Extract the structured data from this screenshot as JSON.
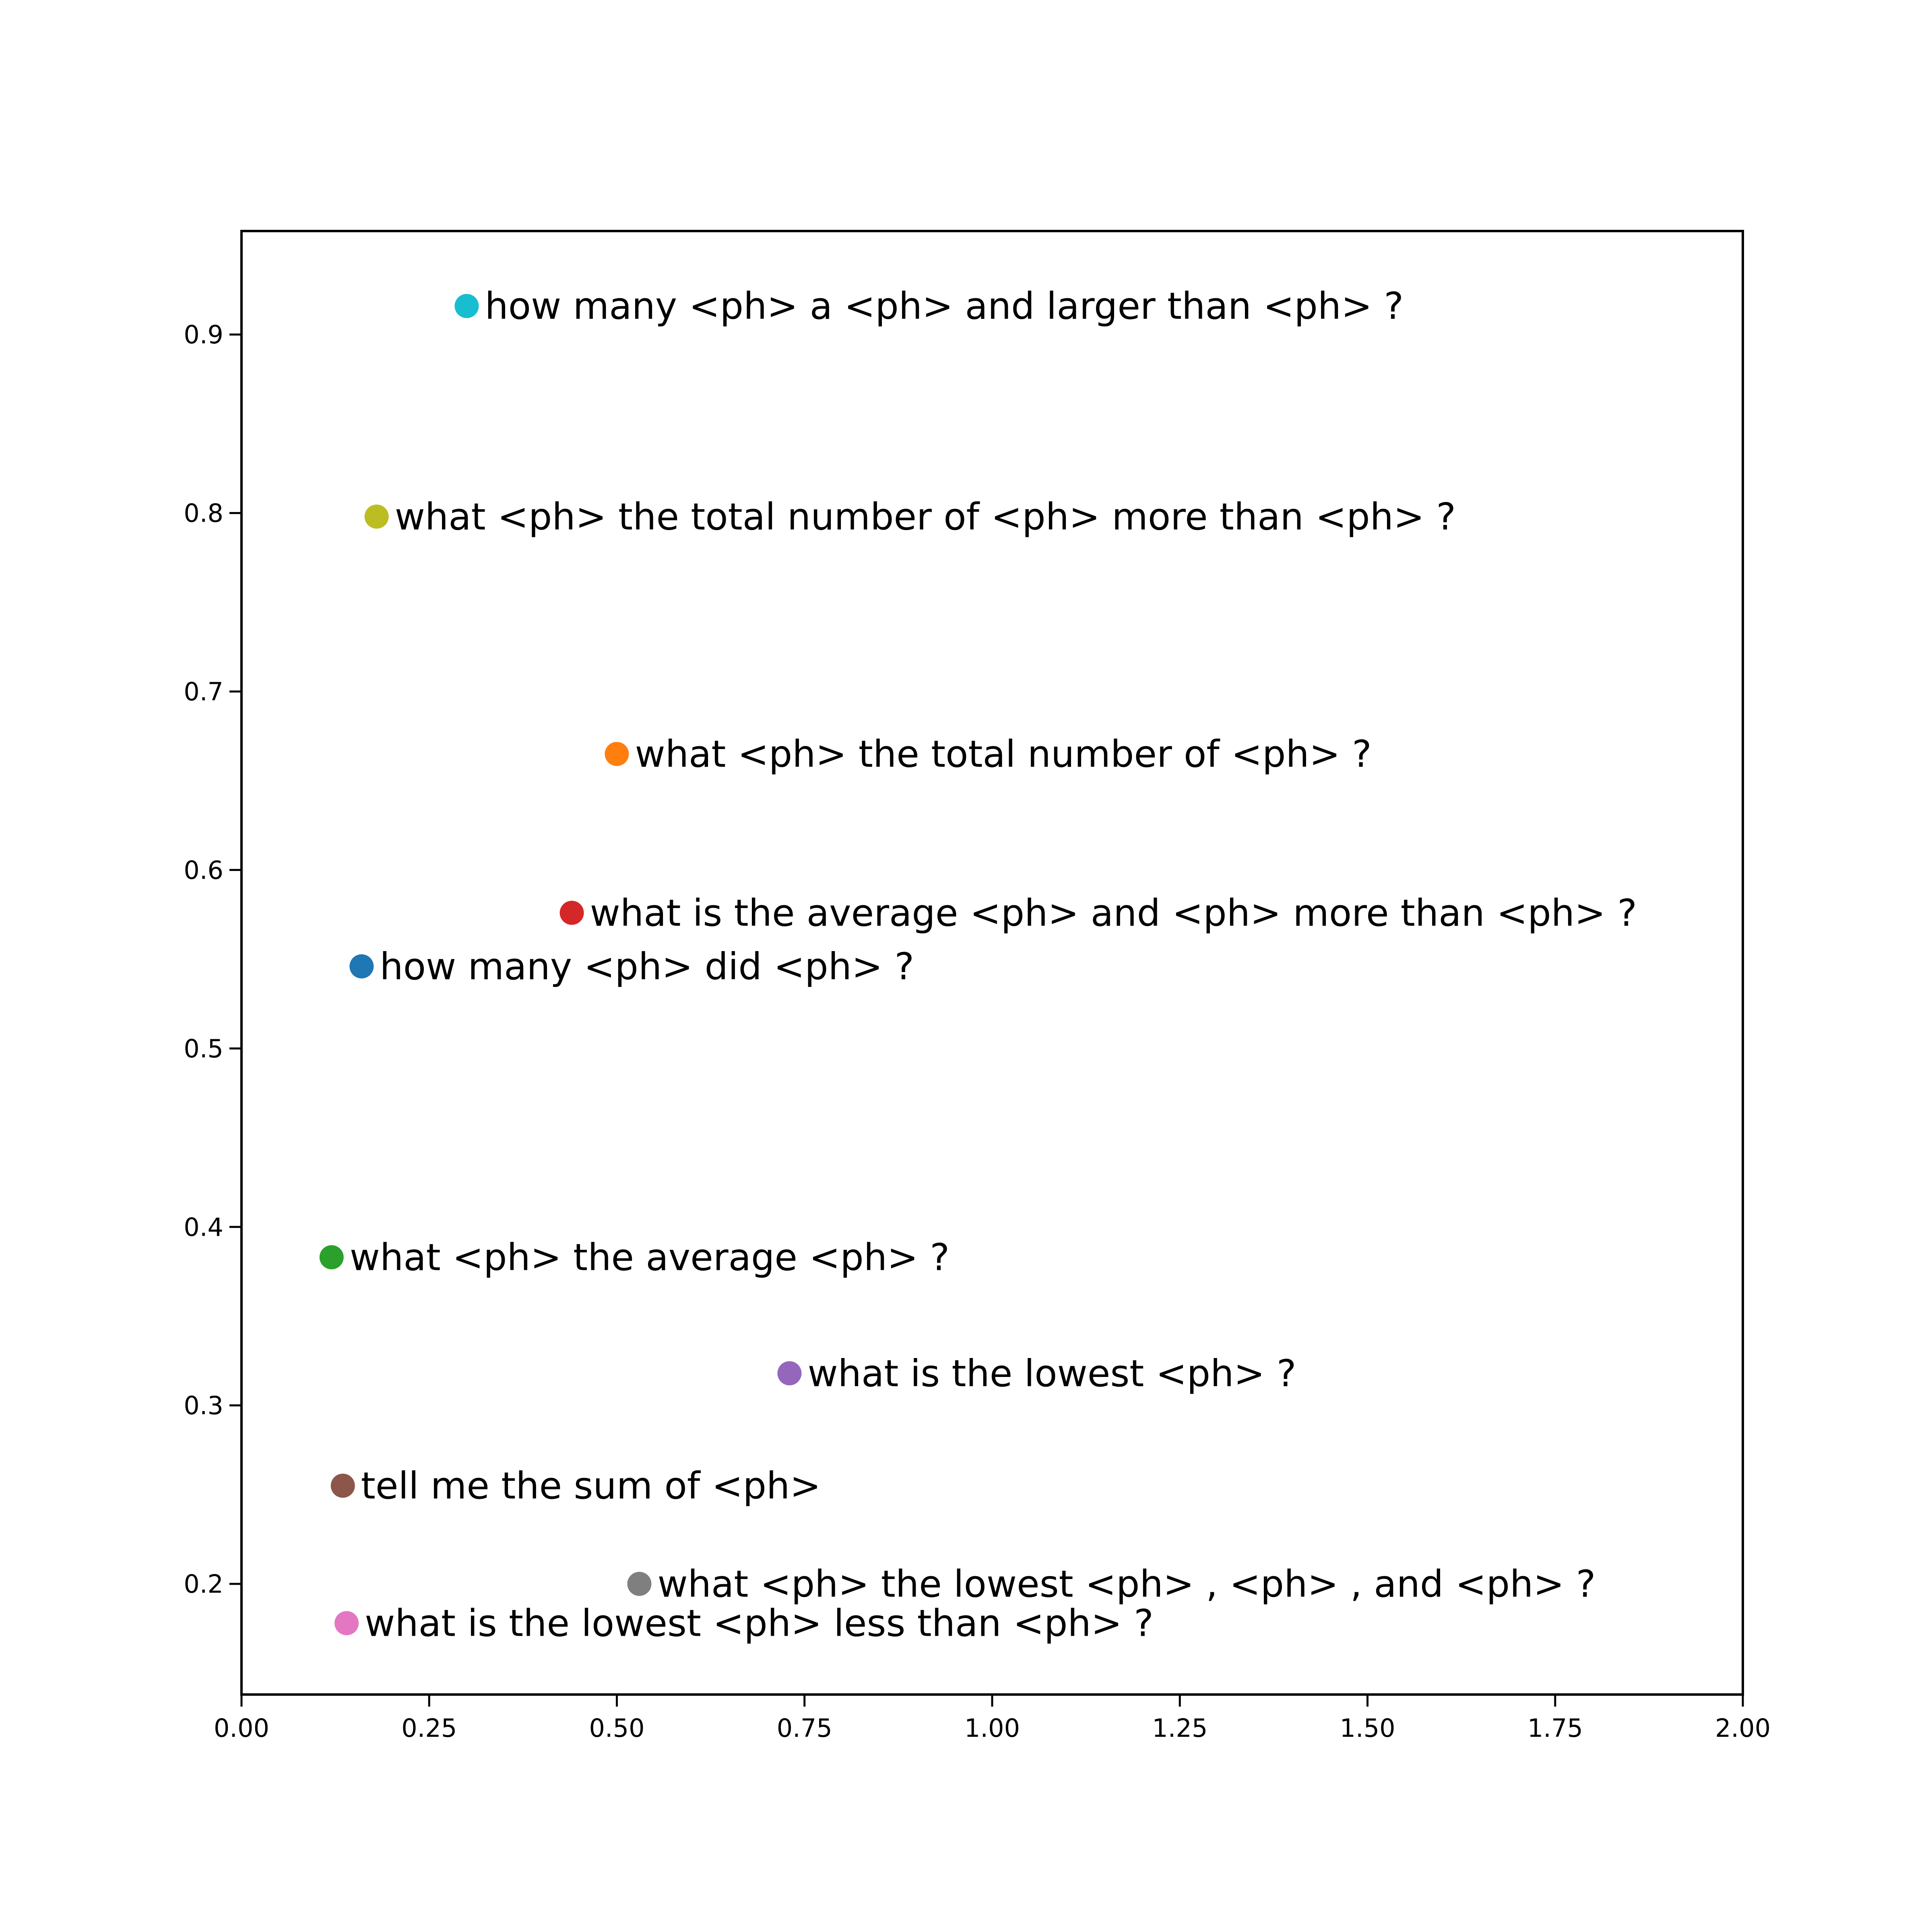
{
  "chart_data": {
    "type": "scatter",
    "title": "",
    "xlabel": "",
    "ylabel": "",
    "xlim": [
      0,
      2
    ],
    "ylim": [
      0.138,
      0.958
    ],
    "xticks": [
      "0.00",
      "0.25",
      "0.50",
      "0.75",
      "1.00",
      "1.25",
      "1.50",
      "1.75",
      "2.00"
    ],
    "yticks": [
      "0.2",
      "0.3",
      "0.4",
      "0.5",
      "0.6",
      "0.7",
      "0.8",
      "0.9"
    ],
    "grid": false,
    "legend": "none",
    "points": [
      {
        "x": 0.16,
        "y": 0.546,
        "label": "how many <ph> did <ph> ?",
        "color": "#1f77b4"
      },
      {
        "x": 0.5,
        "y": 0.665,
        "label": "what <ph> the total number of <ph> ?",
        "color": "#ff7f0e"
      },
      {
        "x": 0.12,
        "y": 0.383,
        "label": "what <ph> the average <ph> ?",
        "color": "#2ca02c"
      },
      {
        "x": 0.44,
        "y": 0.576,
        "label": "what is the average <ph> and <ph> more than <ph> ?",
        "color": "#d62728"
      },
      {
        "x": 0.73,
        "y": 0.318,
        "label": "what is the lowest <ph> ?",
        "color": "#9467bd"
      },
      {
        "x": 0.135,
        "y": 0.255,
        "label": "tell me the sum of <ph>",
        "color": "#8c564b"
      },
      {
        "x": 0.14,
        "y": 0.178,
        "label": "what is the lowest <ph> less than <ph> ?",
        "color": "#e377c2"
      },
      {
        "x": 0.53,
        "y": 0.2,
        "label": "what <ph> the lowest <ph> , <ph> , and <ph> ?",
        "color": "#7f7f7f"
      },
      {
        "x": 0.18,
        "y": 0.798,
        "label": "what <ph> the total number of <ph> more than <ph> ?",
        "color": "#bcbd22"
      },
      {
        "x": 0.3,
        "y": 0.916,
        "label": "how many <ph> a <ph> and larger than <ph> ?",
        "color": "#17becf"
      }
    ]
  }
}
